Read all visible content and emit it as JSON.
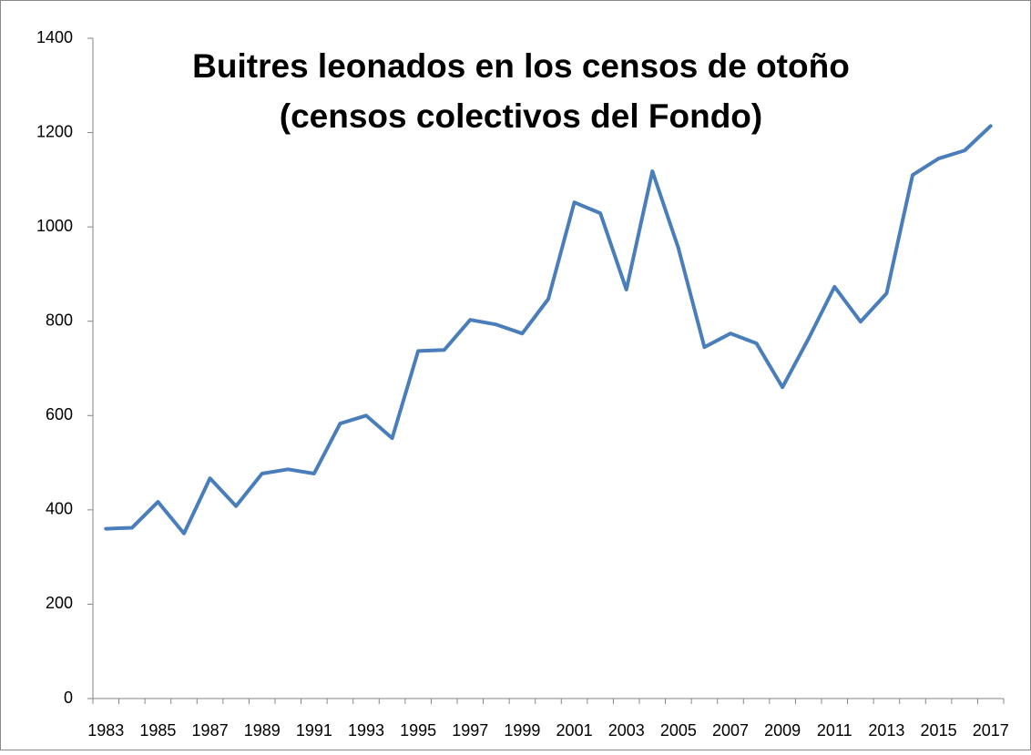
{
  "chart_data": {
    "type": "line",
    "title": [
      "Buitres leonados en los censos de otoño",
      "(censos colectivos del Fondo)"
    ],
    "categories": [
      "1983",
      null,
      "1985",
      null,
      "1987",
      null,
      "1989",
      null,
      "1991",
      null,
      "1993",
      null,
      "1995",
      null,
      "1997",
      null,
      "1999",
      null,
      "2001",
      null,
      "2003",
      null,
      "2005",
      null,
      "2007",
      null,
      "2009",
      null,
      "2011",
      null,
      "2013",
      null,
      "2015",
      null,
      "2017"
    ],
    "series": [
      {
        "color": "#4a7ebb",
        "values": [
          360,
          362,
          417,
          350,
          467,
          408,
          477,
          486,
          477,
          583,
          600,
          552,
          737,
          739,
          803,
          793,
          774,
          847,
          1052,
          1029,
          867,
          1118,
          955,
          745,
          774,
          753,
          660,
          763,
          873,
          799,
          859,
          1110,
          1145,
          1162,
          1214
        ]
      }
    ],
    "ylim": [
      0,
      1400
    ],
    "yticks": [
      0,
      200,
      400,
      600,
      800,
      1000,
      1200,
      1400
    ],
    "grid": false
  }
}
